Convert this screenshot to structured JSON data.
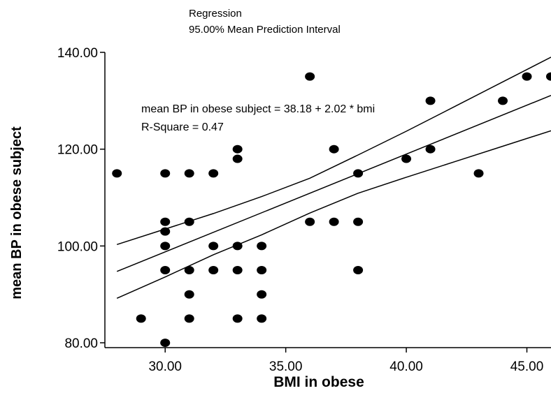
{
  "chart_data": {
    "type": "scatter",
    "title_lines": [
      "Regression",
      "95.00% Mean Prediction Interval"
    ],
    "xlabel": "BMI in obese",
    "ylabel": "mean BP in obese subject",
    "xlim": [
      27.5,
      46.0
    ],
    "ylim": [
      79.0,
      140.0
    ],
    "x_ticks": [
      30,
      35,
      40,
      45
    ],
    "x_tick_labels": [
      "30.00",
      "35.00",
      "40.00",
      "45.00"
    ],
    "y_ticks": [
      80,
      100,
      120,
      140
    ],
    "y_tick_labels": [
      "80.00",
      "100.00",
      "120.00",
      "140.00"
    ],
    "grid": false,
    "points": [
      [
        28,
        115
      ],
      [
        29,
        85
      ],
      [
        30,
        115
      ],
      [
        30,
        105
      ],
      [
        30,
        103
      ],
      [
        30,
        100
      ],
      [
        30,
        95
      ],
      [
        30,
        80
      ],
      [
        31,
        115
      ],
      [
        31,
        105
      ],
      [
        31,
        95
      ],
      [
        31,
        90
      ],
      [
        31,
        85
      ],
      [
        32,
        115
      ],
      [
        32,
        100
      ],
      [
        32,
        95
      ],
      [
        33,
        120
      ],
      [
        33,
        118
      ],
      [
        33,
        100
      ],
      [
        33,
        95
      ],
      [
        33,
        85
      ],
      [
        34,
        100
      ],
      [
        34,
        95
      ],
      [
        34,
        90
      ],
      [
        34,
        85
      ],
      [
        36,
        135
      ],
      [
        36,
        105
      ],
      [
        37,
        120
      ],
      [
        37,
        105
      ],
      [
        38,
        115
      ],
      [
        38,
        105
      ],
      [
        38,
        95
      ],
      [
        40,
        118
      ],
      [
        41,
        130
      ],
      [
        41,
        120
      ],
      [
        43,
        115
      ],
      [
        44,
        130
      ],
      [
        45,
        135
      ],
      [
        46,
        135
      ]
    ],
    "fit_line": {
      "intercept": 38.18,
      "slope": 2.02
    },
    "interval_upper": [
      [
        28,
        100.3
      ],
      [
        30,
        103.5
      ],
      [
        32,
        106.7
      ],
      [
        34,
        110.2
      ],
      [
        36,
        114.0
      ],
      [
        38,
        118.8
      ],
      [
        40,
        123.7
      ],
      [
        42,
        128.8
      ],
      [
        44,
        133.9
      ],
      [
        46,
        139.0
      ]
    ],
    "interval_lower": [
      [
        28,
        89.2
      ],
      [
        30,
        93.6
      ],
      [
        32,
        98.2
      ],
      [
        34,
        102.3
      ],
      [
        36,
        106.8
      ],
      [
        38,
        110.9
      ],
      [
        40,
        114.2
      ],
      [
        42,
        117.4
      ],
      [
        44,
        120.6
      ],
      [
        46,
        123.8
      ]
    ],
    "annotations": [
      "mean BP in obese subject = 38.18 + 2.02 * bmi",
      "R-Square = 0.47"
    ]
  }
}
